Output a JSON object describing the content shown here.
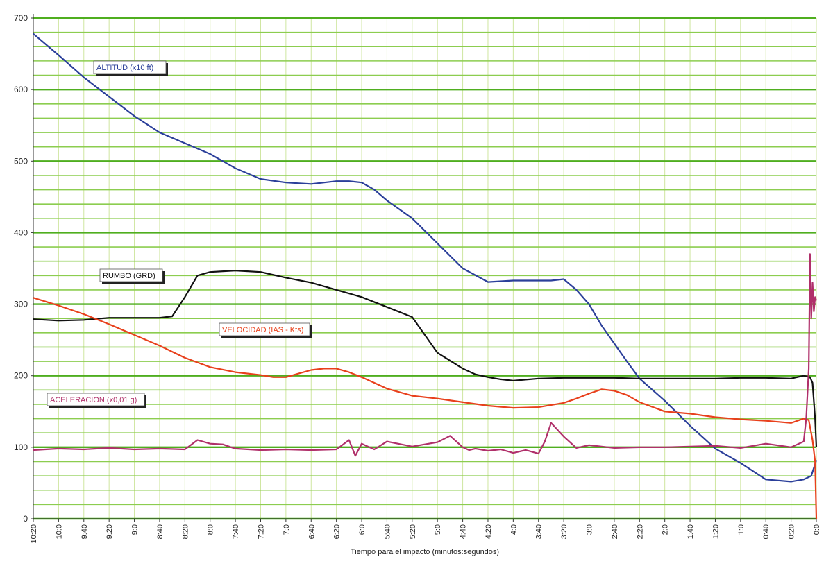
{
  "chart_data": {
    "type": "line",
    "xlabel": "Tiempo para el impacto (minutos:segundos)",
    "ylabel": "",
    "ylim": [
      0,
      700
    ],
    "yticks": [
      0,
      100,
      200,
      300,
      400,
      500,
      600,
      700
    ],
    "x_unit": "seconds before impact",
    "xlim": [
      620,
      0
    ],
    "x_tick_labels": [
      "10:20",
      "10:0",
      "9:40",
      "9:20",
      "9:0",
      "8:40",
      "8:20",
      "8:0",
      "7:40",
      "7:20",
      "7:0",
      "6:40",
      "6:20",
      "6:0",
      "5:40",
      "5:20",
      "5:0",
      "4:40",
      "4:20",
      "4:0",
      "3:40",
      "3:20",
      "3:0",
      "2:40",
      "2:20",
      "2:0",
      "1:40",
      "1:20",
      "1:0",
      "0:40",
      "0:20",
      "0:0"
    ],
    "grid": true,
    "colors": {
      "background": "#ffffff",
      "grid_major": "#4fae1f",
      "grid_minor": "#8ccd4f",
      "grid_vertical": "#cfe6a0",
      "altitud": "#2b3f9a",
      "rumbo": "#111111",
      "velocidad": "#e8401c",
      "aceleracion": "#b0306a"
    },
    "series": [
      {
        "name": "ALTITUD (x10 ft)",
        "color_key": "altitud",
        "x": [
          620,
          600,
          580,
          560,
          540,
          520,
          500,
          480,
          460,
          440,
          420,
          400,
          380,
          370,
          360,
          350,
          340,
          320,
          300,
          280,
          260,
          240,
          220,
          210,
          200,
          190,
          180,
          170,
          160,
          150,
          140,
          120,
          100,
          80,
          60,
          40,
          20,
          10,
          4,
          0
        ],
        "y": [
          678,
          648,
          617,
          590,
          563,
          540,
          525,
          510,
          490,
          475,
          470,
          468,
          472,
          472,
          470,
          460,
          445,
          420,
          385,
          350,
          331,
          333,
          333,
          333,
          335,
          320,
          300,
          270,
          245,
          220,
          196,
          165,
          130,
          98,
          78,
          55,
          52,
          55,
          60,
          82
        ]
      },
      {
        "name": "RUMBO (GRD)",
        "color_key": "rumbo",
        "x": [
          620,
          600,
          580,
          560,
          540,
          520,
          510,
          500,
          490,
          480,
          460,
          440,
          420,
          400,
          380,
          360,
          340,
          320,
          300,
          280,
          270,
          260,
          250,
          240,
          220,
          200,
          180,
          160,
          140,
          120,
          100,
          80,
          60,
          40,
          20,
          10,
          5,
          3,
          1,
          0
        ],
        "y": [
          279,
          277,
          278,
          281,
          281,
          281,
          283,
          310,
          340,
          345,
          347,
          345,
          337,
          330,
          320,
          310,
          296,
          282,
          232,
          210,
          202,
          198,
          195,
          193,
          196,
          197,
          197,
          197,
          196,
          196,
          196,
          196,
          197,
          197,
          196,
          200,
          198,
          190,
          140,
          100
        ]
      },
      {
        "name": "VELOCIDAD (IAS - Kts)",
        "color_key": "velocidad",
        "x": [
          620,
          600,
          580,
          560,
          540,
          520,
          500,
          480,
          460,
          440,
          430,
          420,
          410,
          400,
          390,
          380,
          370,
          360,
          340,
          320,
          300,
          280,
          260,
          240,
          220,
          200,
          190,
          180,
          170,
          160,
          150,
          140,
          120,
          100,
          80,
          60,
          40,
          20,
          10,
          6,
          3,
          1,
          0
        ],
        "y": [
          309,
          298,
          286,
          272,
          257,
          242,
          225,
          212,
          205,
          201,
          198,
          198,
          203,
          208,
          210,
          210,
          205,
          198,
          182,
          172,
          168,
          163,
          158,
          155,
          156,
          162,
          168,
          175,
          181,
          179,
          173,
          163,
          150,
          147,
          142,
          139,
          137,
          134,
          140,
          138,
          110,
          80,
          0
        ]
      },
      {
        "name": "ACELERACION (x0,01 g)",
        "color_key": "aceleracion",
        "x": [
          620,
          600,
          580,
          560,
          540,
          520,
          500,
          490,
          480,
          470,
          460,
          440,
          420,
          400,
          380,
          370,
          365,
          360,
          350,
          340,
          320,
          300,
          290,
          280,
          275,
          270,
          260,
          250,
          240,
          230,
          220,
          215,
          210,
          200,
          190,
          180,
          170,
          160,
          140,
          120,
          100,
          80,
          60,
          40,
          20,
          10,
          8,
          6,
          5,
          4,
          3,
          2,
          1,
          0
        ],
        "y": [
          96,
          98,
          97,
          99,
          97,
          98,
          97,
          110,
          105,
          104,
          98,
          96,
          97,
          96,
          97,
          110,
          88,
          105,
          97,
          108,
          101,
          107,
          116,
          100,
          96,
          98,
          95,
          97,
          92,
          96,
          91,
          108,
          134,
          115,
          99,
          103,
          101,
          99,
          100,
          100,
          101,
          102,
          99,
          105,
          100,
          108,
          140,
          210,
          370,
          280,
          330,
          290,
          310,
          305
        ]
      }
    ],
    "annotations": [
      {
        "text": "ALTITUD (x10 ft)",
        "series": "altitud"
      },
      {
        "text": "RUMBO (GRD)",
        "series": "rumbo"
      },
      {
        "text": "VELOCIDAD (IAS - Kts)",
        "series": "velocidad"
      },
      {
        "text": "ACELERACION (x0,01 g)",
        "series": "aceleracion"
      }
    ]
  }
}
